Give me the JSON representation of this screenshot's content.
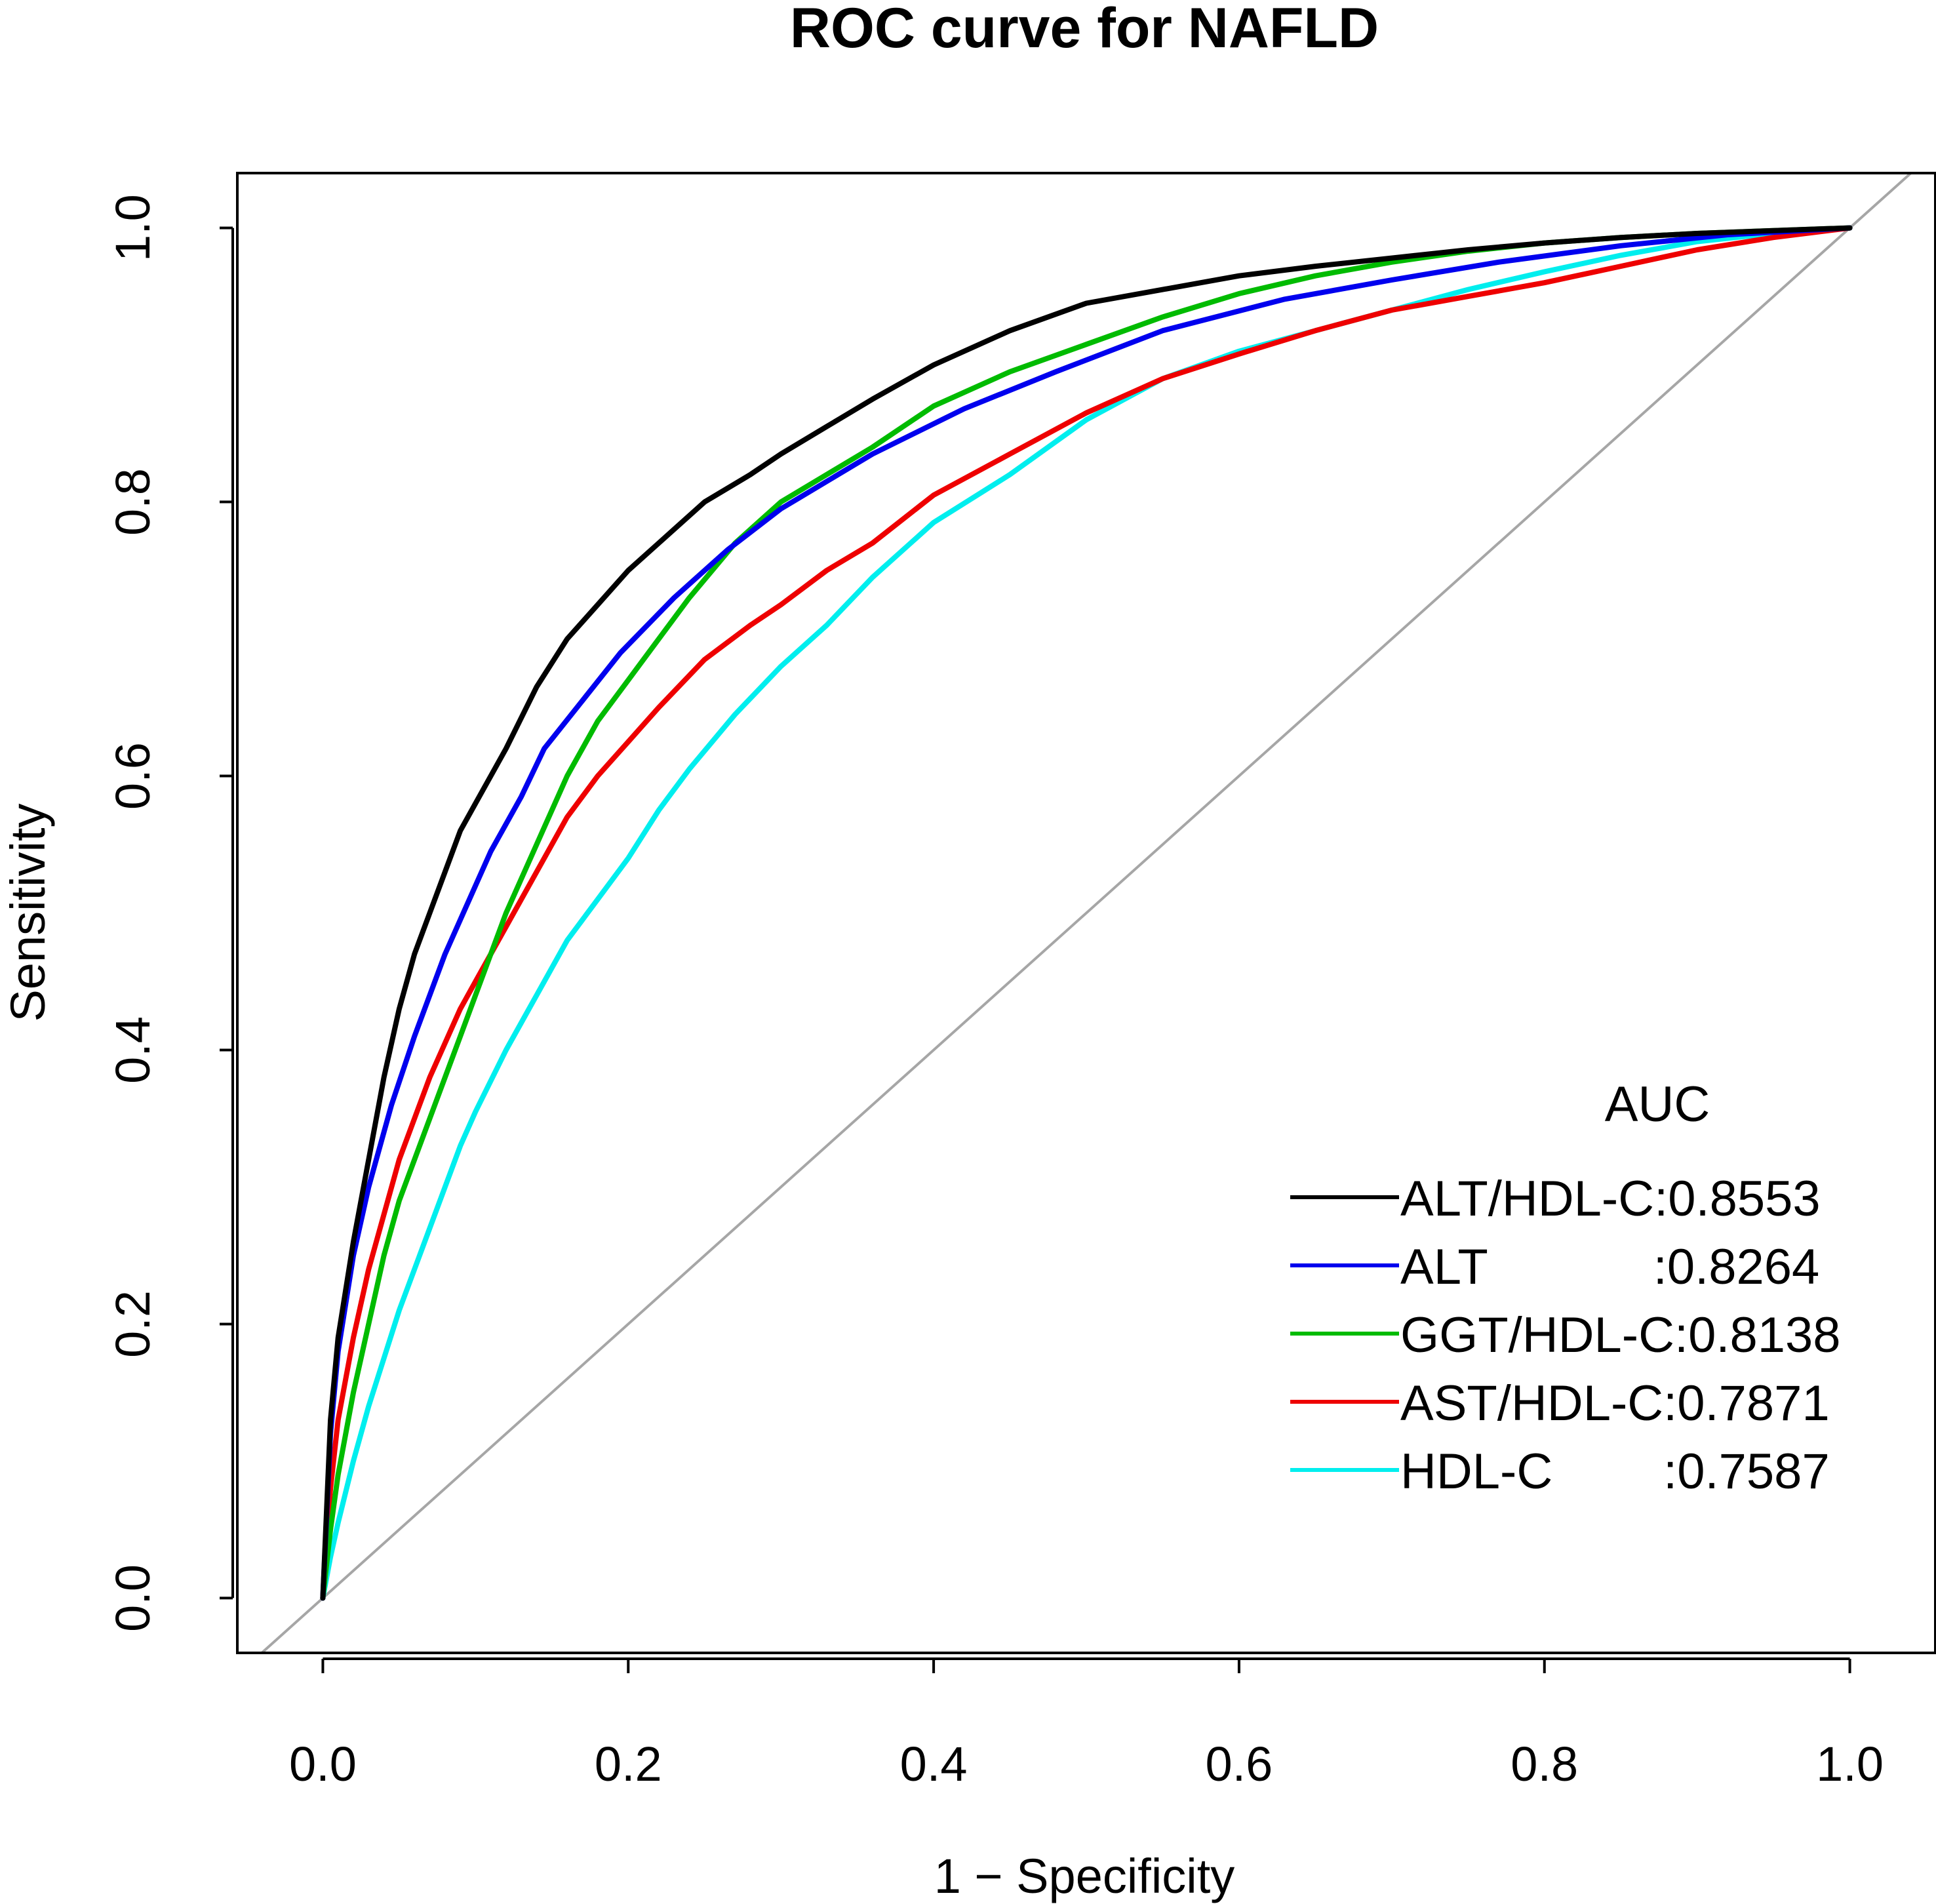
{
  "chart_data": {
    "type": "line",
    "title": "ROC curve for NAFLD",
    "xlabel": "1 − Specificity",
    "ylabel": "Sensitivity",
    "xlim": [
      -0.056,
      1.056
    ],
    "ylim": [
      -0.04,
      1.04
    ],
    "x_ticks": [
      0.0,
      0.2,
      0.4,
      0.6,
      0.8,
      1.0
    ],
    "x_tick_labels": [
      "0.0",
      "0.2",
      "0.4",
      "0.6",
      "0.8",
      "1.0"
    ],
    "y_ticks": [
      0.0,
      0.2,
      0.4,
      0.6,
      0.8,
      1.0
    ],
    "y_tick_labels": [
      "0.0",
      "0.2",
      "0.4",
      "0.6",
      "0.8",
      "1.0"
    ],
    "grid": false,
    "reference_line": {
      "slope": 1,
      "intercept": 0,
      "color": "#a6a6a6"
    },
    "legend": {
      "title": "AUC",
      "position": "bottom-right",
      "entries": [
        {
          "label": "ALT/HDL-C:0.8553",
          "color": "#000000"
        },
        {
          "label": "ALT            :0.8264",
          "color": "#0000ee"
        },
        {
          "label": "GGT/HDL-C:0.8138",
          "color": "#00bb00"
        },
        {
          "label": "AST/HDL-C:0.7871",
          "color": "#ee0000"
        },
        {
          "label": "HDL-C        :0.7587",
          "color": "#00eeee"
        }
      ]
    },
    "series": [
      {
        "name": "ALT/HDL-C",
        "auc": 0.8553,
        "color": "#000000",
        "x": [
          0,
          0.005,
          0.01,
          0.02,
          0.03,
          0.04,
          0.05,
          0.06,
          0.07,
          0.08,
          0.09,
          0.1,
          0.12,
          0.14,
          0.16,
          0.18,
          0.2,
          0.22,
          0.25,
          0.28,
          0.3,
          0.33,
          0.36,
          0.4,
          0.45,
          0.5,
          0.55,
          0.6,
          0.65,
          0.7,
          0.75,
          0.8,
          0.85,
          0.9,
          0.95,
          1.0
        ],
        "y": [
          0,
          0.13,
          0.19,
          0.26,
          0.32,
          0.38,
          0.43,
          0.47,
          0.5,
          0.53,
          0.56,
          0.58,
          0.62,
          0.665,
          0.7,
          0.725,
          0.75,
          0.77,
          0.8,
          0.82,
          0.835,
          0.855,
          0.875,
          0.9,
          0.925,
          0.945,
          0.955,
          0.965,
          0.972,
          0.978,
          0.984,
          0.989,
          0.993,
          0.996,
          0.998,
          1.0
        ]
      },
      {
        "name": "ALT",
        "auc": 0.8264,
        "color": "#0000ee",
        "x": [
          0,
          0.005,
          0.01,
          0.02,
          0.03,
          0.045,
          0.06,
          0.08,
          0.1,
          0.11,
          0.13,
          0.145,
          0.17,
          0.195,
          0.23,
          0.265,
          0.3,
          0.36,
          0.42,
          0.48,
          0.55,
          0.63,
          0.7,
          0.77,
          0.85,
          0.92,
          1.0
        ],
        "y": [
          0,
          0.12,
          0.18,
          0.25,
          0.3,
          0.36,
          0.41,
          0.47,
          0.52,
          0.545,
          0.585,
          0.62,
          0.655,
          0.69,
          0.73,
          0.765,
          0.795,
          0.835,
          0.868,
          0.895,
          0.925,
          0.948,
          0.962,
          0.975,
          0.987,
          0.995,
          1.0
        ]
      },
      {
        "name": "GGT/HDL-C",
        "auc": 0.8138,
        "color": "#00bb00",
        "x": [
          0,
          0.005,
          0.01,
          0.02,
          0.03,
          0.04,
          0.05,
          0.06,
          0.07,
          0.08,
          0.09,
          0.1,
          0.12,
          0.14,
          0.16,
          0.18,
          0.2,
          0.22,
          0.24,
          0.27,
          0.3,
          0.33,
          0.36,
          0.4,
          0.45,
          0.5,
          0.55,
          0.6,
          0.65,
          0.7,
          0.75,
          0.8,
          0.85,
          0.9,
          0.95,
          1.0
        ],
        "y": [
          0,
          0.05,
          0.09,
          0.15,
          0.2,
          0.25,
          0.29,
          0.32,
          0.35,
          0.38,
          0.41,
          0.44,
          0.5,
          0.55,
          0.6,
          0.64,
          0.67,
          0.7,
          0.73,
          0.77,
          0.8,
          0.82,
          0.84,
          0.87,
          0.895,
          0.915,
          0.935,
          0.952,
          0.965,
          0.975,
          0.983,
          0.989,
          0.993,
          0.996,
          0.998,
          1.0
        ]
      },
      {
        "name": "AST/HDL-C",
        "auc": 0.7871,
        "color": "#ee0000",
        "x": [
          0,
          0.005,
          0.01,
          0.02,
          0.03,
          0.04,
          0.05,
          0.06,
          0.07,
          0.08,
          0.09,
          0.1,
          0.12,
          0.14,
          0.16,
          0.18,
          0.2,
          0.22,
          0.25,
          0.28,
          0.3,
          0.33,
          0.36,
          0.4,
          0.45,
          0.5,
          0.55,
          0.6,
          0.65,
          0.7,
          0.75,
          0.8,
          0.85,
          0.9,
          0.95,
          1.0
        ],
        "y": [
          0,
          0.08,
          0.13,
          0.19,
          0.24,
          0.28,
          0.32,
          0.35,
          0.38,
          0.405,
          0.43,
          0.45,
          0.49,
          0.53,
          0.57,
          0.6,
          0.625,
          0.65,
          0.685,
          0.71,
          0.725,
          0.75,
          0.77,
          0.805,
          0.835,
          0.865,
          0.89,
          0.908,
          0.925,
          0.94,
          0.95,
          0.96,
          0.972,
          0.984,
          0.993,
          1.0
        ]
      },
      {
        "name": "HDL-C",
        "auc": 0.7587,
        "color": "#00eeee",
        "x": [
          0,
          0.005,
          0.01,
          0.02,
          0.03,
          0.04,
          0.05,
          0.06,
          0.07,
          0.08,
          0.09,
          0.1,
          0.12,
          0.14,
          0.16,
          0.18,
          0.2,
          0.22,
          0.24,
          0.27,
          0.3,
          0.33,
          0.36,
          0.4,
          0.45,
          0.5,
          0.55,
          0.6,
          0.65,
          0.7,
          0.75,
          0.8,
          0.85,
          0.9,
          0.95,
          1.0
        ],
        "y": [
          0,
          0.03,
          0.055,
          0.1,
          0.14,
          0.175,
          0.21,
          0.24,
          0.27,
          0.3,
          0.33,
          0.355,
          0.4,
          0.44,
          0.48,
          0.51,
          0.54,
          0.575,
          0.605,
          0.645,
          0.68,
          0.71,
          0.745,
          0.785,
          0.82,
          0.86,
          0.89,
          0.91,
          0.925,
          0.94,
          0.955,
          0.968,
          0.98,
          0.99,
          0.996,
          1.0
        ]
      }
    ]
  }
}
